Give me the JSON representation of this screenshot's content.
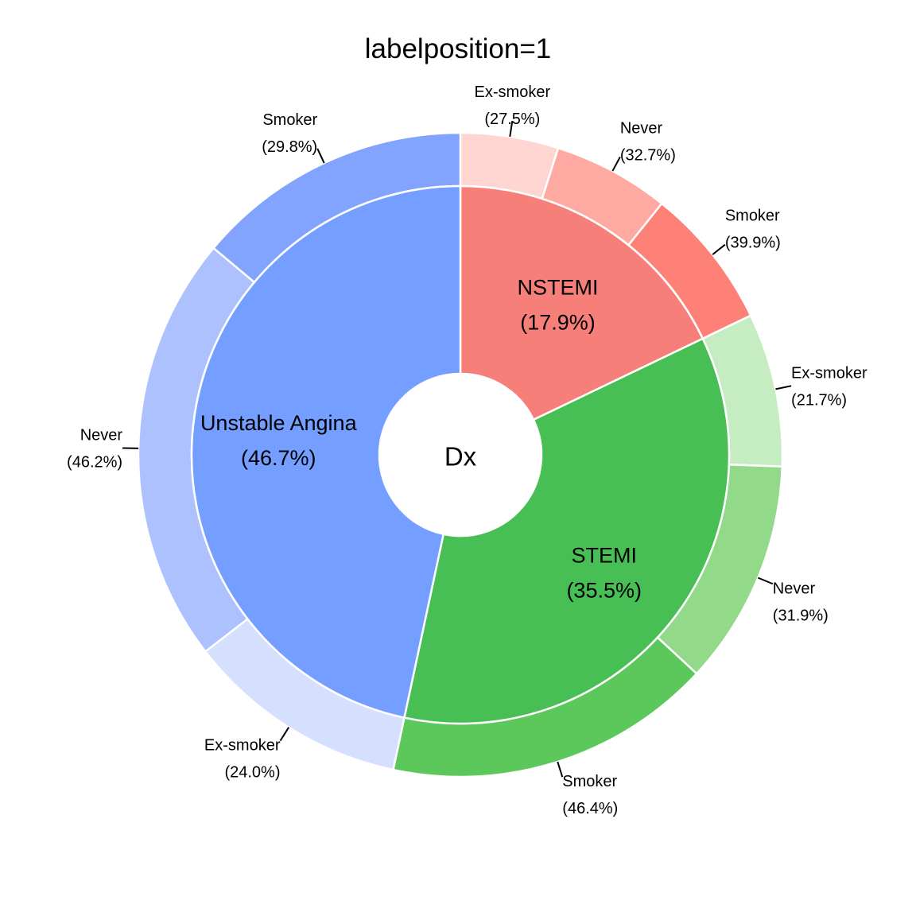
{
  "chart_data": {
    "type": "pie",
    "title": "labelposition=1",
    "center_label": "Dx",
    "inner": [
      {
        "name": "NSTEMI",
        "percent_label": "(17.9%)",
        "value": 17.9,
        "color": "#F67F7A"
      },
      {
        "name": "STEMI",
        "percent_label": "(35.5%)",
        "value": 35.5,
        "color": "#47BF55"
      },
      {
        "name": "Unstable Angina",
        "percent_label": "(46.7%)",
        "value": 46.7,
        "color": "#749EFF"
      }
    ],
    "outer": [
      {
        "parent": "NSTEMI",
        "name": "Ex-smoker",
        "percent_label": "(27.5%)",
        "value": 27.5,
        "color": "#FFD5D1"
      },
      {
        "parent": "NSTEMI",
        "name": "Never",
        "percent_label": "(32.7%)",
        "value": 32.7,
        "color": "#FEAAA2"
      },
      {
        "parent": "NSTEMI",
        "name": "Smoker",
        "percent_label": "(39.9%)",
        "value": 39.9,
        "color": "#FE8177"
      },
      {
        "parent": "STEMI",
        "name": "Ex-smoker",
        "percent_label": "(21.7%)",
        "value": 21.7,
        "color": "#C6EDC1"
      },
      {
        "parent": "STEMI",
        "name": "Never",
        "percent_label": "(31.9%)",
        "value": 31.9,
        "color": "#92D98A"
      },
      {
        "parent": "STEMI",
        "name": "Smoker",
        "percent_label": "(46.4%)",
        "value": 46.4,
        "color": "#5CC85B"
      },
      {
        "parent": "Unstable Angina",
        "name": "Ex-smoker",
        "percent_label": "(24.0%)",
        "value": 24.0,
        "color": "#D5DFFE"
      },
      {
        "parent": "Unstable Angina",
        "name": "Never",
        "percent_label": "(46.2%)",
        "value": 46.2,
        "color": "#ADC1FE"
      },
      {
        "parent": "Unstable Angina",
        "name": "Smoker",
        "percent_label": "(29.8%)",
        "value": 29.8,
        "color": "#83A4FE"
      }
    ]
  }
}
